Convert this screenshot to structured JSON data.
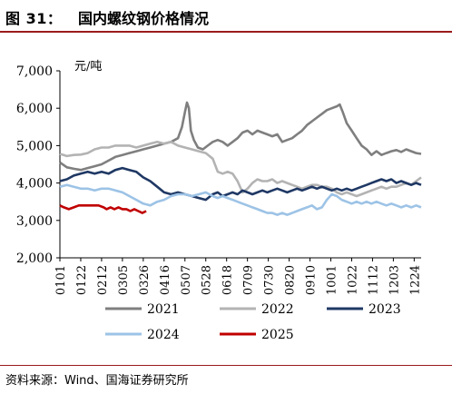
{
  "figure": {
    "label": "图 31：",
    "title": "国内螺纹钢价格情况",
    "source": "资料来源：Wind、国海证券研究所"
  },
  "chart_data": {
    "type": "line",
    "unit_label": "元/吨",
    "ylim": [
      2000,
      7000
    ],
    "yticks": [
      2000,
      3000,
      4000,
      5000,
      6000,
      7000
    ],
    "ytick_labels": [
      "2,000",
      "3,000",
      "4,000",
      "5,000",
      "6,000",
      "7,000"
    ],
    "x_domain": [
      1,
      365
    ],
    "xticks": [
      {
        "label": "0101",
        "day": 1
      },
      {
        "label": "0122",
        "day": 22
      },
      {
        "label": "0212",
        "day": 43
      },
      {
        "label": "0305",
        "day": 64
      },
      {
        "label": "0326",
        "day": 85
      },
      {
        "label": "0416",
        "day": 106
      },
      {
        "label": "0507",
        "day": 127
      },
      {
        "label": "0528",
        "day": 148
      },
      {
        "label": "0618",
        "day": 169
      },
      {
        "label": "0709",
        "day": 190
      },
      {
        "label": "0730",
        "day": 211
      },
      {
        "label": "0820",
        "day": 232
      },
      {
        "label": "0910",
        "day": 253
      },
      {
        "label": "1001",
        "day": 274
      },
      {
        "label": "1022",
        "day": 295
      },
      {
        "label": "1112",
        "day": 316
      },
      {
        "label": "1203",
        "day": 337
      },
      {
        "label": "1224",
        "day": 358
      }
    ],
    "grid": false,
    "legend_position": "bottom",
    "series": [
      {
        "name": "2021",
        "color": "#7f7f7f",
        "points": [
          [
            1,
            4550
          ],
          [
            8,
            4420
          ],
          [
            15,
            4380
          ],
          [
            22,
            4350
          ],
          [
            29,
            4400
          ],
          [
            36,
            4450
          ],
          [
            43,
            4500
          ],
          [
            50,
            4600
          ],
          [
            57,
            4700
          ],
          [
            64,
            4750
          ],
          [
            71,
            4800
          ],
          [
            78,
            4850
          ],
          [
            85,
            4900
          ],
          [
            92,
            4950
          ],
          [
            99,
            5000
          ],
          [
            106,
            5050
          ],
          [
            113,
            5100
          ],
          [
            120,
            5200
          ],
          [
            124,
            5500
          ],
          [
            127,
            5900
          ],
          [
            129,
            6150
          ],
          [
            131,
            6000
          ],
          [
            133,
            5400
          ],
          [
            136,
            5150
          ],
          [
            140,
            4950
          ],
          [
            145,
            4900
          ],
          [
            150,
            5000
          ],
          [
            155,
            5100
          ],
          [
            160,
            5150
          ],
          [
            165,
            5100
          ],
          [
            170,
            5000
          ],
          [
            175,
            5100
          ],
          [
            180,
            5200
          ],
          [
            185,
            5350
          ],
          [
            190,
            5400
          ],
          [
            195,
            5300
          ],
          [
            200,
            5400
          ],
          [
            205,
            5350
          ],
          [
            210,
            5300
          ],
          [
            215,
            5250
          ],
          [
            220,
            5300
          ],
          [
            225,
            5100
          ],
          [
            230,
            5150
          ],
          [
            235,
            5200
          ],
          [
            240,
            5300
          ],
          [
            245,
            5400
          ],
          [
            250,
            5550
          ],
          [
            255,
            5650
          ],
          [
            260,
            5750
          ],
          [
            265,
            5850
          ],
          [
            270,
            5950
          ],
          [
            275,
            6000
          ],
          [
            280,
            6050
          ],
          [
            283,
            6100
          ],
          [
            286,
            5900
          ],
          [
            290,
            5600
          ],
          [
            295,
            5400
          ],
          [
            300,
            5200
          ],
          [
            305,
            5000
          ],
          [
            310,
            4900
          ],
          [
            315,
            4750
          ],
          [
            320,
            4850
          ],
          [
            325,
            4750
          ],
          [
            330,
            4800
          ],
          [
            335,
            4850
          ],
          [
            340,
            4880
          ],
          [
            345,
            4830
          ],
          [
            350,
            4900
          ],
          [
            355,
            4850
          ],
          [
            360,
            4800
          ],
          [
            365,
            4780
          ]
        ]
      },
      {
        "name": "2022",
        "color": "#b3b3b3",
        "points": [
          [
            1,
            4780
          ],
          [
            8,
            4720
          ],
          [
            15,
            4750
          ],
          [
            22,
            4760
          ],
          [
            29,
            4800
          ],
          [
            36,
            4900
          ],
          [
            43,
            4950
          ],
          [
            50,
            4950
          ],
          [
            57,
            5000
          ],
          [
            64,
            5000
          ],
          [
            71,
            5000
          ],
          [
            78,
            4950
          ],
          [
            85,
            5000
          ],
          [
            92,
            5050
          ],
          [
            99,
            5100
          ],
          [
            106,
            5050
          ],
          [
            113,
            5100
          ],
          [
            120,
            5000
          ],
          [
            127,
            4950
          ],
          [
            134,
            4900
          ],
          [
            141,
            4850
          ],
          [
            148,
            4800
          ],
          [
            155,
            4650
          ],
          [
            160,
            4300
          ],
          [
            165,
            4250
          ],
          [
            170,
            4300
          ],
          [
            175,
            4250
          ],
          [
            180,
            4050
          ],
          [
            185,
            3750
          ],
          [
            190,
            3850
          ],
          [
            195,
            4000
          ],
          [
            200,
            4100
          ],
          [
            205,
            4050
          ],
          [
            210,
            4050
          ],
          [
            215,
            4100
          ],
          [
            220,
            4000
          ],
          [
            225,
            4050
          ],
          [
            230,
            4000
          ],
          [
            235,
            3950
          ],
          [
            240,
            3900
          ],
          [
            245,
            3850
          ],
          [
            250,
            3900
          ],
          [
            255,
            3950
          ],
          [
            260,
            3950
          ],
          [
            265,
            3900
          ],
          [
            270,
            3900
          ],
          [
            275,
            3850
          ],
          [
            280,
            3750
          ],
          [
            285,
            3700
          ],
          [
            290,
            3750
          ],
          [
            295,
            3700
          ],
          [
            300,
            3650
          ],
          [
            305,
            3700
          ],
          [
            310,
            3750
          ],
          [
            315,
            3800
          ],
          [
            320,
            3850
          ],
          [
            325,
            3900
          ],
          [
            330,
            3850
          ],
          [
            335,
            3900
          ],
          [
            340,
            3900
          ],
          [
            345,
            3950
          ],
          [
            350,
            4000
          ],
          [
            355,
            3950
          ],
          [
            360,
            4050
          ],
          [
            365,
            4150
          ]
        ]
      },
      {
        "name": "2023",
        "color": "#1f3864",
        "points": [
          [
            1,
            4050
          ],
          [
            8,
            4100
          ],
          [
            15,
            4200
          ],
          [
            22,
            4250
          ],
          [
            29,
            4300
          ],
          [
            36,
            4250
          ],
          [
            43,
            4300
          ],
          [
            50,
            4250
          ],
          [
            57,
            4350
          ],
          [
            64,
            4400
          ],
          [
            71,
            4350
          ],
          [
            78,
            4300
          ],
          [
            85,
            4150
          ],
          [
            92,
            4050
          ],
          [
            99,
            3900
          ],
          [
            106,
            3750
          ],
          [
            113,
            3700
          ],
          [
            120,
            3750
          ],
          [
            127,
            3700
          ],
          [
            134,
            3650
          ],
          [
            141,
            3600
          ],
          [
            148,
            3550
          ],
          [
            155,
            3700
          ],
          [
            160,
            3750
          ],
          [
            165,
            3650
          ],
          [
            170,
            3700
          ],
          [
            175,
            3750
          ],
          [
            180,
            3700
          ],
          [
            185,
            3800
          ],
          [
            190,
            3750
          ],
          [
            195,
            3700
          ],
          [
            200,
            3750
          ],
          [
            205,
            3800
          ],
          [
            210,
            3750
          ],
          [
            215,
            3800
          ],
          [
            220,
            3850
          ],
          [
            225,
            3800
          ],
          [
            230,
            3750
          ],
          [
            235,
            3800
          ],
          [
            240,
            3850
          ],
          [
            245,
            3800
          ],
          [
            250,
            3850
          ],
          [
            255,
            3900
          ],
          [
            260,
            3850
          ],
          [
            265,
            3900
          ],
          [
            270,
            3850
          ],
          [
            275,
            3800
          ],
          [
            280,
            3850
          ],
          [
            285,
            3800
          ],
          [
            290,
            3850
          ],
          [
            295,
            3800
          ],
          [
            300,
            3850
          ],
          [
            305,
            3900
          ],
          [
            310,
            3950
          ],
          [
            315,
            4000
          ],
          [
            320,
            4050
          ],
          [
            325,
            4100
          ],
          [
            330,
            4050
          ],
          [
            335,
            4100
          ],
          [
            340,
            4000
          ],
          [
            345,
            4050
          ],
          [
            350,
            4000
          ],
          [
            355,
            3950
          ],
          [
            360,
            4000
          ],
          [
            365,
            3950
          ]
        ]
      },
      {
        "name": "2024",
        "color": "#9dc3e6",
        "points": [
          [
            1,
            3900
          ],
          [
            8,
            3950
          ],
          [
            15,
            3900
          ],
          [
            22,
            3850
          ],
          [
            29,
            3850
          ],
          [
            36,
            3800
          ],
          [
            43,
            3850
          ],
          [
            50,
            3850
          ],
          [
            57,
            3800
          ],
          [
            64,
            3750
          ],
          [
            71,
            3650
          ],
          [
            78,
            3550
          ],
          [
            85,
            3450
          ],
          [
            92,
            3400
          ],
          [
            99,
            3500
          ],
          [
            106,
            3550
          ],
          [
            113,
            3650
          ],
          [
            120,
            3700
          ],
          [
            127,
            3700
          ],
          [
            134,
            3650
          ],
          [
            141,
            3700
          ],
          [
            148,
            3750
          ],
          [
            155,
            3650
          ],
          [
            160,
            3600
          ],
          [
            165,
            3650
          ],
          [
            170,
            3600
          ],
          [
            175,
            3550
          ],
          [
            180,
            3500
          ],
          [
            185,
            3450
          ],
          [
            190,
            3400
          ],
          [
            195,
            3350
          ],
          [
            200,
            3300
          ],
          [
            205,
            3250
          ],
          [
            210,
            3200
          ],
          [
            215,
            3200
          ],
          [
            220,
            3150
          ],
          [
            225,
            3200
          ],
          [
            230,
            3150
          ],
          [
            235,
            3200
          ],
          [
            240,
            3250
          ],
          [
            245,
            3300
          ],
          [
            250,
            3350
          ],
          [
            255,
            3400
          ],
          [
            260,
            3300
          ],
          [
            265,
            3350
          ],
          [
            270,
            3550
          ],
          [
            275,
            3700
          ],
          [
            280,
            3650
          ],
          [
            285,
            3550
          ],
          [
            290,
            3500
          ],
          [
            295,
            3450
          ],
          [
            300,
            3500
          ],
          [
            305,
            3450
          ],
          [
            310,
            3500
          ],
          [
            315,
            3450
          ],
          [
            320,
            3500
          ],
          [
            325,
            3450
          ],
          [
            330,
            3400
          ],
          [
            335,
            3450
          ],
          [
            340,
            3400
          ],
          [
            345,
            3350
          ],
          [
            350,
            3400
          ],
          [
            355,
            3350
          ],
          [
            360,
            3400
          ],
          [
            365,
            3350
          ]
        ]
      },
      {
        "name": "2025",
        "color": "#c00000",
        "points": [
          [
            1,
            3400
          ],
          [
            5,
            3350
          ],
          [
            10,
            3300
          ],
          [
            15,
            3350
          ],
          [
            20,
            3400
          ],
          [
            25,
            3400
          ],
          [
            30,
            3400
          ],
          [
            35,
            3400
          ],
          [
            40,
            3400
          ],
          [
            45,
            3350
          ],
          [
            48,
            3300
          ],
          [
            52,
            3350
          ],
          [
            56,
            3300
          ],
          [
            60,
            3350
          ],
          [
            64,
            3300
          ],
          [
            68,
            3300
          ],
          [
            72,
            3250
          ],
          [
            76,
            3300
          ],
          [
            80,
            3250
          ],
          [
            84,
            3200
          ],
          [
            88,
            3250
          ]
        ]
      }
    ]
  }
}
